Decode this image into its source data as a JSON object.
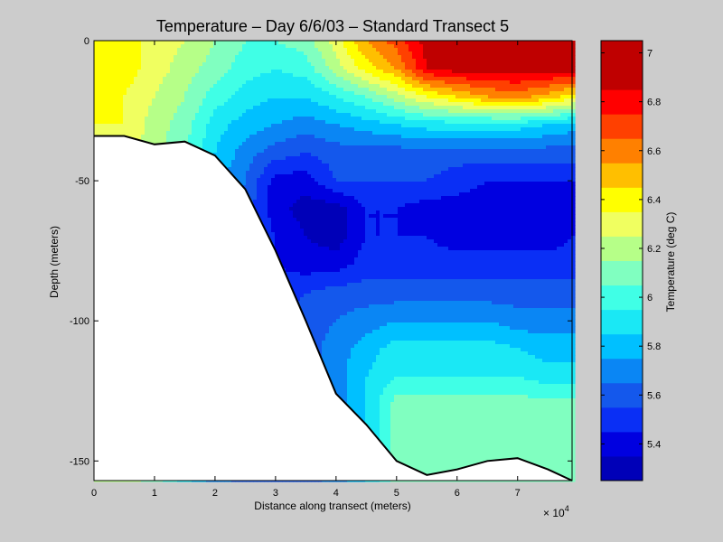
{
  "chart_data": {
    "type": "heatmap",
    "title": "Temperature – Day 6/6/03 – Standard Transect 5",
    "xlabel": "Distance along transect (meters)",
    "ylabel": "Depth (meters)",
    "colorbar_label": "Temperature (deg C)",
    "x_multiplier_label": "× 10",
    "x_multiplier_exponent": "4",
    "xlim": [
      0,
      79000
    ],
    "ylim": [
      -157,
      0
    ],
    "x_ticks": [
      0,
      10000,
      20000,
      30000,
      40000,
      50000,
      60000,
      70000
    ],
    "x_tick_labels": [
      "0",
      "1",
      "2",
      "3",
      "4",
      "5",
      "6",
      "7"
    ],
    "y_ticks": [
      0,
      -50,
      -100,
      -150
    ],
    "y_tick_labels": [
      "0",
      "-50",
      "-100",
      "-150"
    ],
    "colorbar_range": [
      5.25,
      7.05
    ],
    "colorbar_ticks": [
      5.4,
      5.6,
      5.8,
      6.0,
      6.2,
      6.4,
      6.6,
      6.8,
      7.0
    ],
    "colorbar_tick_labels": [
      "5.4",
      "5.6",
      "5.8",
      "6",
      "6.2",
      "6.4",
      "6.6",
      "6.8",
      "7"
    ],
    "levels": [
      {
        "min": 5.25,
        "max": 5.35,
        "color": "#0000b8"
      },
      {
        "min": 5.35,
        "max": 5.45,
        "color": "#0000e0"
      },
      {
        "min": 5.45,
        "max": 5.55,
        "color": "#0a2ff5"
      },
      {
        "min": 5.55,
        "max": 5.65,
        "color": "#1458ec"
      },
      {
        "min": 5.65,
        "max": 5.75,
        "color": "#0a86f4"
      },
      {
        "min": 5.75,
        "max": 5.85,
        "color": "#00c0ff"
      },
      {
        "min": 5.85,
        "max": 5.95,
        "color": "#1ae8f5"
      },
      {
        "min": 5.95,
        "max": 6.05,
        "color": "#40ffe6"
      },
      {
        "min": 6.05,
        "max": 6.15,
        "color": "#80ffc0"
      },
      {
        "min": 6.15,
        "max": 6.25,
        "color": "#b6ff88"
      },
      {
        "min": 6.25,
        "max": 6.35,
        "color": "#f0ff60"
      },
      {
        "min": 6.35,
        "max": 6.45,
        "color": "#ffff00"
      },
      {
        "min": 6.45,
        "max": 6.55,
        "color": "#ffbf00"
      },
      {
        "min": 6.55,
        "max": 6.65,
        "color": "#ff8000"
      },
      {
        "min": 6.65,
        "max": 6.75,
        "color": "#ff4000"
      },
      {
        "min": 6.75,
        "max": 6.85,
        "color": "#ff0000"
      },
      {
        "min": 6.85,
        "max": 7.05,
        "color": "#bf0000"
      }
    ],
    "bathymetry": [
      {
        "x": 0,
        "depth": -34
      },
      {
        "x": 5000,
        "depth": -34
      },
      {
        "x": 10000,
        "depth": -37
      },
      {
        "x": 15000,
        "depth": -36
      },
      {
        "x": 20000,
        "depth": -41
      },
      {
        "x": 25000,
        "depth": -53
      },
      {
        "x": 30000,
        "depth": -75
      },
      {
        "x": 35000,
        "depth": -100
      },
      {
        "x": 40000,
        "depth": -126
      },
      {
        "x": 45000,
        "depth": -137
      },
      {
        "x": 50000,
        "depth": -150
      },
      {
        "x": 55000,
        "depth": -155
      },
      {
        "x": 60000,
        "depth": -153
      },
      {
        "x": 65000,
        "depth": -150
      },
      {
        "x": 70000,
        "depth": -149
      },
      {
        "x": 75000,
        "depth": -153
      },
      {
        "x": 79000,
        "depth": -157
      }
    ],
    "grid_x": [
      0,
      5000,
      10000,
      15000,
      20000,
      25000,
      30000,
      35000,
      40000,
      45000,
      50000,
      55000,
      60000,
      65000,
      70000,
      75000,
      79000
    ],
    "grid_depth": [
      0,
      -10,
      -20,
      -30,
      -40,
      -50,
      -60,
      -70,
      -80,
      -90,
      -100,
      -110,
      -120,
      -130,
      -140,
      -150,
      -157
    ],
    "temperature": [
      [
        6.4,
        6.4,
        6.3,
        6.25,
        6.15,
        6.05,
        6.05,
        6.1,
        6.3,
        6.55,
        6.7,
        6.9,
        6.95,
        6.95,
        6.95,
        6.95,
        6.95
      ],
      [
        6.4,
        6.4,
        6.3,
        6.2,
        6.1,
        6.0,
        5.95,
        6.0,
        6.2,
        6.4,
        6.55,
        6.85,
        6.9,
        6.9,
        6.9,
        6.9,
        6.9
      ],
      [
        6.4,
        6.35,
        6.25,
        6.15,
        6.0,
        5.9,
        5.85,
        5.85,
        5.95,
        6.05,
        6.2,
        6.35,
        6.45,
        6.55,
        6.6,
        6.5,
        6.4
      ],
      [
        6.35,
        6.35,
        6.2,
        6.1,
        5.9,
        5.8,
        5.75,
        5.7,
        5.75,
        5.8,
        5.85,
        5.9,
        5.9,
        5.9,
        5.9,
        5.85,
        5.8
      ],
      [
        6.3,
        6.3,
        6.2,
        6.05,
        5.85,
        5.7,
        5.6,
        5.55,
        5.6,
        5.6,
        5.6,
        5.6,
        5.6,
        5.6,
        5.6,
        5.6,
        5.6
      ],
      [
        6.25,
        6.25,
        6.15,
        6.0,
        5.8,
        5.65,
        5.4,
        5.4,
        5.55,
        5.55,
        5.55,
        5.55,
        5.5,
        5.45,
        5.45,
        5.45,
        5.45
      ],
      [
        6.2,
        6.2,
        6.1,
        5.95,
        5.75,
        5.6,
        5.4,
        5.3,
        5.3,
        5.45,
        5.45,
        5.4,
        5.4,
        5.4,
        5.4,
        5.4,
        5.4
      ],
      [
        6.2,
        6.2,
        6.1,
        5.9,
        5.7,
        5.55,
        5.45,
        5.35,
        5.3,
        5.45,
        5.45,
        5.45,
        5.4,
        5.4,
        5.4,
        5.4,
        5.45
      ],
      [
        6.2,
        6.2,
        6.1,
        5.9,
        5.7,
        5.55,
        5.45,
        5.4,
        5.4,
        5.5,
        5.5,
        5.5,
        5.5,
        5.5,
        5.5,
        5.5,
        5.5
      ],
      [
        6.2,
        6.2,
        6.1,
        5.9,
        5.7,
        5.55,
        5.5,
        5.55,
        5.6,
        5.6,
        5.6,
        5.6,
        5.6,
        5.6,
        5.6,
        5.6,
        5.6
      ],
      [
        6.2,
        6.2,
        6.1,
        5.9,
        5.7,
        5.6,
        5.55,
        5.6,
        5.65,
        5.7,
        5.75,
        5.75,
        5.75,
        5.75,
        5.7,
        5.7,
        5.7
      ],
      [
        6.2,
        6.2,
        6.1,
        5.9,
        5.7,
        5.6,
        5.6,
        5.6,
        5.7,
        5.8,
        5.9,
        5.9,
        5.9,
        5.9,
        5.85,
        5.8,
        5.8
      ],
      [
        6.2,
        6.2,
        6.1,
        5.9,
        5.7,
        5.6,
        5.6,
        5.6,
        5.7,
        5.85,
        5.95,
        5.95,
        5.95,
        5.95,
        5.95,
        5.9,
        5.9
      ],
      [
        6.2,
        6.2,
        6.1,
        5.9,
        5.7,
        5.6,
        5.6,
        5.6,
        5.7,
        5.85,
        6.1,
        6.1,
        6.1,
        6.1,
        6.1,
        6.1,
        6.1
      ],
      [
        6.2,
        6.2,
        6.1,
        5.9,
        5.7,
        5.6,
        5.6,
        5.6,
        5.7,
        5.85,
        6.1,
        6.1,
        6.1,
        6.1,
        6.1,
        6.1,
        6.1
      ],
      [
        6.2,
        6.2,
        6.1,
        5.9,
        5.7,
        5.6,
        5.6,
        5.6,
        5.7,
        5.85,
        6.1,
        6.1,
        6.1,
        6.1,
        6.1,
        6.1,
        6.1
      ],
      [
        6.2,
        6.2,
        6.1,
        5.9,
        5.7,
        5.6,
        5.6,
        5.6,
        5.7,
        5.85,
        6.1,
        6.1,
        6.1,
        6.1,
        6.1,
        6.1,
        6.1
      ]
    ]
  }
}
